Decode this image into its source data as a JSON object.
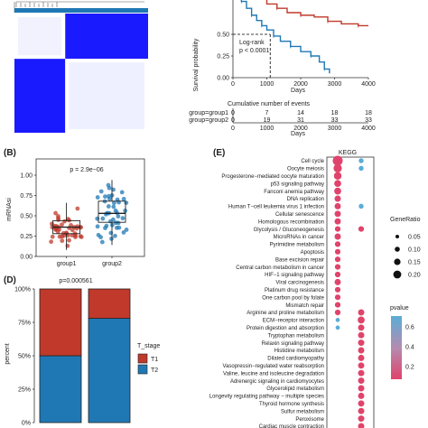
{
  "colors": {
    "red": "#c0392b",
    "blue": "#1f78b4",
    "heat_blue": "#1a1aff",
    "kegg_red": "#e0436b",
    "kegg_blue": "#5aaed6"
  },
  "chart_data": [
    {
      "type": "heatmap",
      "panel": "",
      "description_text": "",
      "blocks": [
        {
          "rows": [
            0,
            0.38
          ],
          "cols": [
            0,
            0.38
          ],
          "value": "low"
        },
        {
          "rows": [
            0,
            0.38
          ],
          "cols": [
            0.38,
            1
          ],
          "value": "high"
        },
        {
          "rows": [
            0.38,
            1
          ],
          "cols": [
            0,
            0.38
          ],
          "value": "high"
        },
        {
          "rows": [
            0.38,
            1
          ],
          "cols": [
            0.38,
            1
          ],
          "value": "low"
        }
      ]
    },
    {
      "type": "line",
      "panel": "",
      "ylabel": "Survival probability",
      "xlabel": "Days",
      "xlim": [
        0,
        4000
      ],
      "ylim": [
        0,
        1
      ],
      "x_ticks": [
        "0",
        "1000",
        "2000",
        "3000",
        "4000"
      ],
      "y_ticks": [
        "0.00",
        "0.25",
        "0.50"
      ],
      "annotation": [
        "Log-rank",
        "p < 0.0001"
      ],
      "series": [
        {
          "name": "group1",
          "x": [
            0,
            250,
            400,
            600,
            800,
            1000,
            1300,
            1600,
            2000,
            2400,
            2800,
            3200,
            3700,
            4000
          ],
          "y": [
            1.0,
            0.98,
            0.96,
            0.94,
            0.92,
            0.85,
            0.8,
            0.75,
            0.72,
            0.7,
            0.65,
            0.62,
            0.6,
            0.6
          ]
        },
        {
          "name": "group2",
          "x": [
            0,
            100,
            250,
            400,
            550,
            700,
            850,
            1000,
            1200,
            1400,
            1700,
            2000,
            2300,
            2550,
            2700,
            2850
          ],
          "y": [
            1.0,
            0.95,
            0.88,
            0.8,
            0.72,
            0.66,
            0.6,
            0.55,
            0.48,
            0.42,
            0.36,
            0.3,
            0.25,
            0.18,
            0.1,
            0.05
          ]
        }
      ],
      "median_x": 1100
    },
    {
      "type": "table",
      "panel": "",
      "title": "Cumulative number of events",
      "xlabel": "Days",
      "x_ticks": [
        "0",
        "1000",
        "2000",
        "3000",
        "4000"
      ],
      "rows": [
        {
          "label": "group=group1",
          "values": [
            "0",
            "7",
            "14",
            "18",
            "18"
          ]
        },
        {
          "label": "group=group2",
          "values": [
            "0",
            "19",
            "31",
            "33",
            "33"
          ]
        }
      ]
    },
    {
      "type": "scatter",
      "panel": "(B)",
      "ylabel": "mRNAsi",
      "annotation": "p = 2.9e−06",
      "categories": [
        "group1",
        "group2"
      ],
      "ylim": [
        0,
        1.2
      ],
      "y_ticks": [
        "0.00",
        "0.25",
        "0.50",
        "0.75",
        "1.00"
      ],
      "series": [
        {
          "name": "group1",
          "q1": 0.28,
          "median": 0.36,
          "q3": 0.44,
          "whisker_low": 0.08,
          "whisker_high": 0.66
        },
        {
          "name": "group2",
          "q1": 0.42,
          "median": 0.53,
          "q3": 0.68,
          "whisker_low": 0.14,
          "whisker_high": 0.94
        }
      ]
    },
    {
      "type": "bar",
      "panel": "(D)",
      "title": "p=0.000561",
      "ylabel": "percent",
      "y_ticks": [
        "0%",
        "25%",
        "50%",
        "75%",
        "100%"
      ],
      "ylim": [
        0,
        1
      ],
      "categories": [
        "group1",
        "group2"
      ],
      "legend_title": "T_stage",
      "series": [
        {
          "name": "T1",
          "values": [
            0.5,
            0.22
          ]
        },
        {
          "name": "T2",
          "values": [
            0.5,
            0.78
          ]
        }
      ]
    },
    {
      "type": "scatter",
      "panel": "(E)",
      "title": "KEGG",
      "terms": [
        "Cell cycle",
        "Oocyte meiosis",
        "Progesterone−mediated oocyte maturation",
        "p53 signaling pathway",
        "Fanconi anemia pathway",
        "DNA replication",
        "Human T−cell leukemia virus 1 infection",
        "Cellular senescence",
        "Homologous recombination",
        "Glycolysis / Gluconeogenesis",
        "MicroRNAs in cancer",
        "Pyrimidine metabolism",
        "Apoptosis",
        "Base excision repair",
        "Central carbon metabolism in cancer",
        "HIF−1 signaling pathway",
        "Viral carcinogenesis",
        "Platinum drug resistance",
        "One carbon pool by folate",
        "Mismatch repair",
        "Arginine and proline metabolism",
        "ECM−receptor interaction",
        "Protein digestion and absorption",
        "Tryptophan metabolism",
        "Relaxin signaling pathway",
        "Histidine metabolism",
        "Dilated cardiomyopathy",
        "Vasopressin−regulated water reabsorption",
        "Valine, leucine and isoleucine degradation",
        "Adrenergic signaling in cardiomyocytes",
        "Glycerolipid metabolism",
        "Longevity regulating pathway − multiple species",
        "Thyroid hormone synthesis",
        "Sulfur metabolism",
        "Peroxisome",
        "Cardiac muscle contraction"
      ],
      "columns": [
        {
          "sizes": [
            0.12,
            0.09,
            0.08,
            0.07,
            0.07,
            0.06,
            0.06,
            0.06,
            0.06,
            0.05,
            0.06,
            0.05,
            0.05,
            0.05,
            0.05,
            0.05,
            0.06,
            0.05,
            0.05,
            0.05,
            0.05,
            0.03,
            0.03,
            null,
            null,
            null,
            null,
            null,
            null,
            null,
            null,
            null,
            null,
            null,
            null,
            null
          ],
          "pvalues": [
            0.05,
            0.05,
            0.05,
            0.05,
            0.05,
            0.05,
            0.05,
            0.05,
            0.05,
            0.05,
            0.05,
            0.05,
            0.05,
            0.05,
            0.05,
            0.05,
            0.05,
            0.05,
            0.05,
            0.05,
            0.05,
            0.6,
            0.6,
            null,
            null,
            null,
            null,
            null,
            null,
            null,
            null,
            null,
            null,
            null,
            null,
            null
          ]
        },
        {
          "sizes": [
            0.04,
            0.04,
            null,
            null,
            null,
            null,
            0.04,
            null,
            null,
            0.05,
            null,
            null,
            null,
            null,
            null,
            null,
            null,
            null,
            null,
            null,
            0.06,
            0.07,
            0.06,
            0.06,
            0.06,
            0.06,
            0.06,
            0.06,
            0.06,
            0.06,
            0.06,
            0.06,
            0.06,
            0.06,
            0.06,
            0.06
          ],
          "pvalues": [
            0.4,
            0.4,
            null,
            null,
            null,
            null,
            0.6,
            null,
            null,
            0.05,
            null,
            null,
            null,
            null,
            null,
            null,
            null,
            null,
            null,
            null,
            0.05,
            0.05,
            0.05,
            0.05,
            0.05,
            0.05,
            0.05,
            0.05,
            0.05,
            0.05,
            0.05,
            0.05,
            0.05,
            0.05,
            0.05,
            0.05
          ]
        }
      ],
      "legend_size_title": "GeneRatio",
      "legend_sizes": [
        "0.05",
        "0.10",
        "0.15",
        "0.20"
      ],
      "legend_color_title": "pvalue",
      "legend_color_ticks": [
        "0.6",
        "0.4",
        "0.2"
      ]
    }
  ]
}
